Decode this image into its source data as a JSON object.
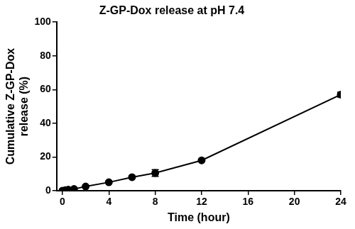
{
  "chart_data": {
    "type": "line",
    "title": "Z-GP-Dox release at pH 7.4",
    "x_label": "Time (hour)",
    "y_label": [
      "Cumulative Z-GP-Dox",
      "release (%)"
    ],
    "x": [
      0,
      0.25,
      0.5,
      1,
      2,
      4,
      6,
      8,
      12,
      24
    ],
    "series": [
      {
        "name": "Z-GP-Dox",
        "color": "#000000",
        "marker": "circle",
        "line_style": "solid",
        "values": [
          0,
          0.3,
          0.6,
          1.0,
          2.5,
          5,
          8,
          10.5,
          18,
          57
        ],
        "errors": [
          0,
          0,
          0,
          0,
          0,
          0,
          0,
          2,
          0,
          1.5
        ]
      }
    ],
    "xlim": [
      -0.5,
      24
    ],
    "xticks": [
      0,
      4,
      8,
      12,
      16,
      20,
      24
    ],
    "ylim": [
      0,
      100
    ],
    "yticks": [
      0,
      20,
      40,
      60,
      80,
      100
    ],
    "grid": false
  }
}
